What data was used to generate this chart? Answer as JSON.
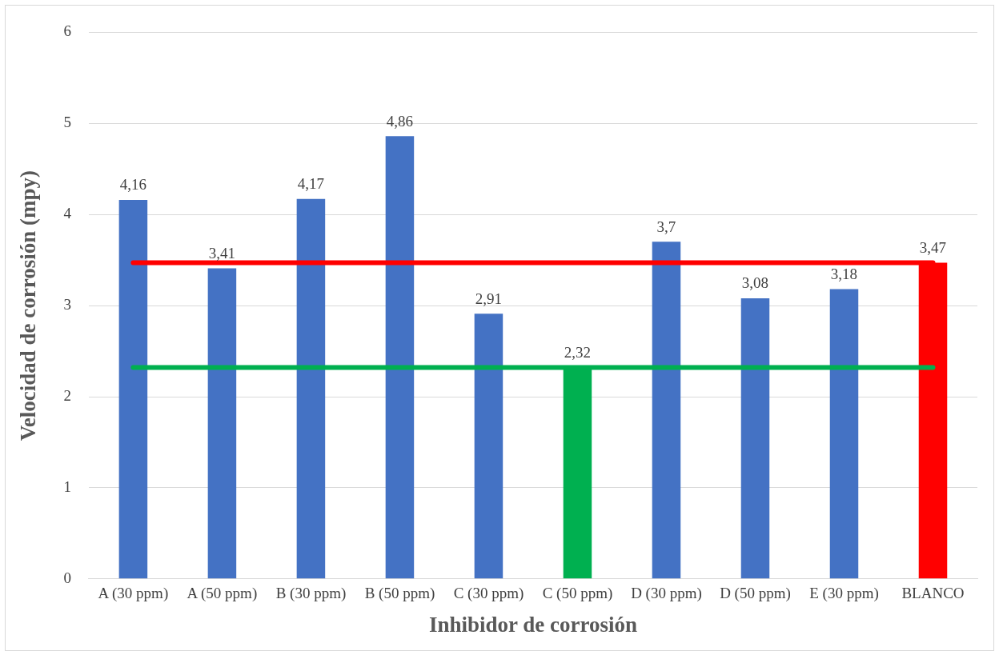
{
  "chart_data": {
    "type": "bar",
    "xlabel": "Inhibidor de corrosión",
    "ylabel": "Velocidad de corrosión (mpy)",
    "categories": [
      "A (30 ppm)",
      "A (50 ppm)",
      "B (30 ppm)",
      "B (50 ppm)",
      "C (30 ppm)",
      "C (50 ppm)",
      "D (30 ppm)",
      "D (50 ppm)",
      "E (30 ppm)",
      "BLANCO"
    ],
    "values": [
      4.16,
      3.41,
      4.17,
      4.86,
      2.91,
      2.32,
      3.7,
      3.08,
      3.18,
      3.47
    ],
    "colors": [
      "#4472c4",
      "#4472c4",
      "#4472c4",
      "#4472c4",
      "#4472c4",
      "#00b050",
      "#4472c4",
      "#4472c4",
      "#4472c4",
      "#ff0000"
    ],
    "value_labels": [
      "4,16",
      "3,41",
      "4,17",
      "4,86",
      "2,91",
      "2,32",
      "3,7",
      "3,08",
      "3,18",
      "3,47"
    ],
    "ref_lines": [
      {
        "axis": "y",
        "value": 3.47,
        "color": "#ff0000"
      },
      {
        "axis": "y",
        "value": 2.32,
        "color": "#00b050"
      }
    ],
    "ylim": [
      0,
      6
    ],
    "yticks": [
      0,
      1,
      2,
      3,
      4,
      5,
      6
    ],
    "grid": "y",
    "legend": false
  }
}
